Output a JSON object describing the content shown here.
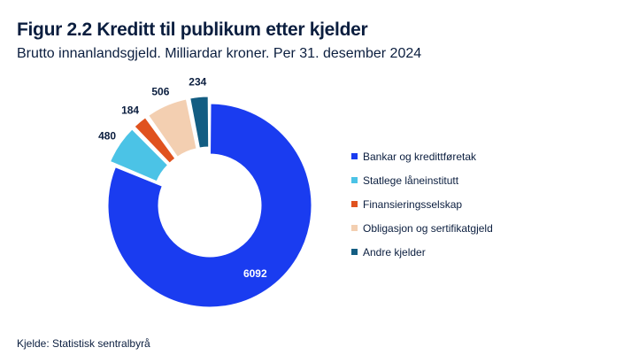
{
  "header": {
    "title": "Figur 2.2 Kreditt til publikum etter kjelder",
    "subtitle": "Brutto innanlandsgjeld. Milliardar kroner. Per 31. desember 2024"
  },
  "footer": {
    "source": "Kjelde: Statistisk sentralbyrå"
  },
  "chart_data": {
    "type": "pie",
    "variant": "donut",
    "legend_position": "right",
    "series": [
      {
        "name": "Bankar og kredittføretak",
        "value": 6092,
        "label": "6092",
        "color": "#1a3cf0"
      },
      {
        "name": "Statlege låneinstitutt",
        "value": 480,
        "label": "480",
        "color": "#4bc3e6"
      },
      {
        "name": "Finansieringsselskap",
        "value": 184,
        "label": "184",
        "color": "#e0521e"
      },
      {
        "name": "Obligasjon og sertifikatgjeld",
        "value": 506,
        "label": "506",
        "color": "#f3cfb1"
      },
      {
        "name": "Andre kjelder",
        "value": 234,
        "label": "234",
        "color": "#135d82"
      }
    ]
  }
}
